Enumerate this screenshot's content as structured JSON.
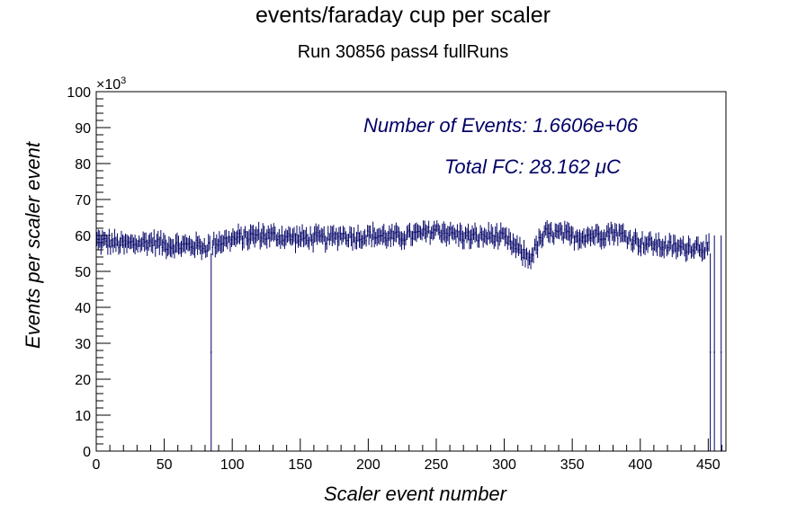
{
  "chart_data": {
    "type": "histogram",
    "title": "events/faraday cup per scaler",
    "subtitle": "Run 30856 pass4 fullRuns",
    "xlabel": "Scaler event number",
    "ylabel": "Events per scaler event",
    "y_multiplier": "×10",
    "y_multiplier_exp": "3",
    "xlim": [
      0,
      463
    ],
    "ylim": [
      0,
      100
    ],
    "x_ticks": [
      0,
      50,
      100,
      150,
      200,
      250,
      300,
      350,
      400,
      450
    ],
    "y_ticks": [
      0,
      10,
      20,
      30,
      40,
      50,
      60,
      70,
      80,
      90,
      100
    ],
    "grid": false,
    "line_color": "#000066",
    "annotations": {
      "events": "Number of Events:  1.6606e+06",
      "fc": "Total FC:  28.162 μC"
    },
    "profile_points": [
      [
        0,
        58.5
      ],
      [
        10,
        58
      ],
      [
        20,
        57.5
      ],
      [
        30,
        57.8
      ],
      [
        40,
        58.2
      ],
      [
        50,
        57.5
      ],
      [
        60,
        57
      ],
      [
        70,
        57.3
      ],
      [
        80,
        56.8
      ],
      [
        88,
        58
      ],
      [
        100,
        59
      ],
      [
        110,
        59.5
      ],
      [
        120,
        60
      ],
      [
        130,
        59.8
      ],
      [
        140,
        59.5
      ],
      [
        150,
        59.2
      ],
      [
        160,
        59.3
      ],
      [
        170,
        59
      ],
      [
        180,
        60.2
      ],
      [
        190,
        59.5
      ],
      [
        200,
        60
      ],
      [
        210,
        59.8
      ],
      [
        220,
        59.5
      ],
      [
        230,
        60
      ],
      [
        240,
        60.5
      ],
      [
        250,
        61.5
      ],
      [
        260,
        60.5
      ],
      [
        270,
        59.8
      ],
      [
        280,
        59.5
      ],
      [
        290,
        60
      ],
      [
        300,
        59
      ],
      [
        310,
        56
      ],
      [
        318,
        53.5
      ],
      [
        325,
        58
      ],
      [
        330,
        60.5
      ],
      [
        340,
        60.5
      ],
      [
        350,
        59.5
      ],
      [
        360,
        60
      ],
      [
        370,
        60.2
      ],
      [
        380,
        61
      ],
      [
        390,
        59.5
      ],
      [
        400,
        58
      ],
      [
        410,
        57.5
      ],
      [
        420,
        56.8
      ],
      [
        430,
        56.5
      ],
      [
        440,
        57
      ],
      [
        450,
        56.5
      ]
    ],
    "gaps": [
      84,
      451,
      454,
      459
    ],
    "gap_low_values": [
      27.5,
      27.5,
      27.5,
      27.5
    ],
    "gap_high_values": [
      55,
      55,
      60,
      60
    ],
    "n_bins": 463
  }
}
